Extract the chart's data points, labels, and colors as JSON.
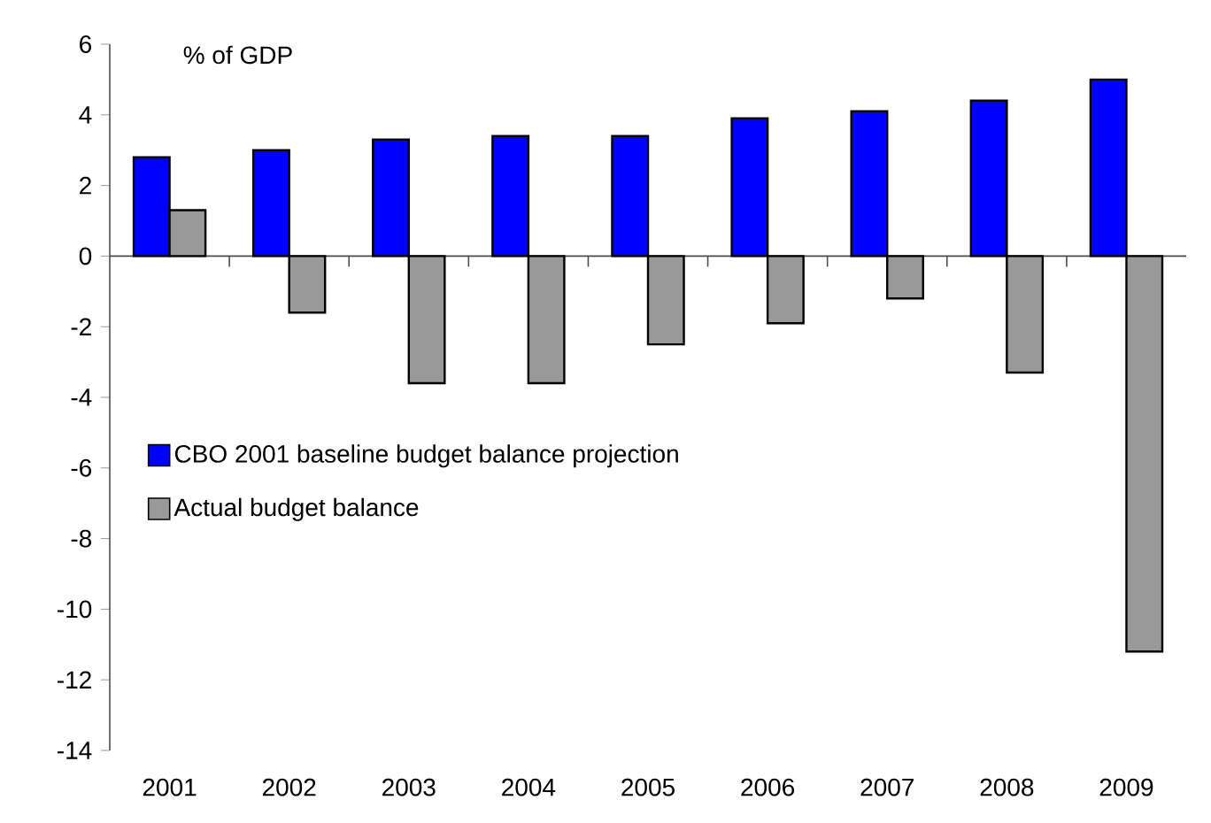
{
  "chart_data": {
    "type": "bar",
    "ylabel": "% of GDP",
    "categories": [
      "2001",
      "2002",
      "2003",
      "2004",
      "2005",
      "2006",
      "2007",
      "2008",
      "2009"
    ],
    "series": [
      {
        "name": "CBO 2001 baseline budget balance projection",
        "color": "#0000ff",
        "values": [
          2.8,
          3.0,
          3.3,
          3.4,
          3.4,
          3.9,
          4.1,
          4.4,
          5.0
        ]
      },
      {
        "name": "Actual budget balance",
        "color": "#999999",
        "values": [
          1.3,
          -1.6,
          -3.6,
          -3.6,
          -2.5,
          -1.9,
          -1.2,
          -3.3,
          -11.2
        ]
      }
    ],
    "ylim": [
      -14,
      6
    ],
    "yticks": [
      -14,
      -12,
      -10,
      -8,
      -6,
      -4,
      -2,
      0,
      2,
      4,
      6
    ],
    "legend": "left"
  }
}
